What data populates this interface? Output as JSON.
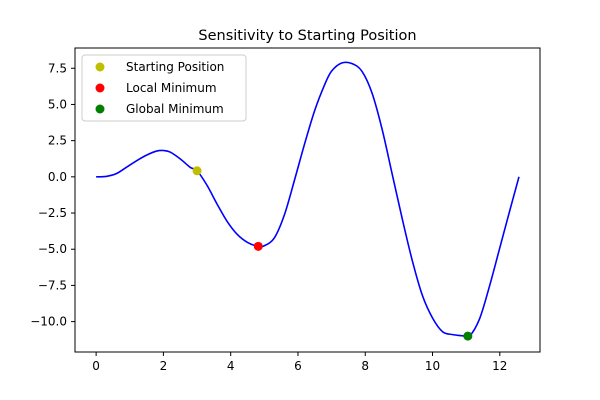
{
  "chart_data": {
    "type": "line",
    "title": "Sensitivity to Starting Position",
    "xlabel": "",
    "ylabel": "",
    "xlim": [
      -0.628,
      13.195
    ],
    "ylim": [
      -12.1,
      8.9
    ],
    "x_ticks": [
      0,
      2,
      4,
      6,
      8,
      10,
      12
    ],
    "y_ticks": [
      -10.0,
      -7.5,
      -5.0,
      -2.5,
      0.0,
      2.5,
      5.0,
      7.5
    ],
    "x_tick_labels": [
      "0",
      "2",
      "4",
      "6",
      "8",
      "10",
      "12"
    ],
    "y_tick_labels": [
      "−10.0",
      "−7.5",
      "−5.0",
      "−2.5",
      "0.0",
      "2.5",
      "5.0",
      "7.5"
    ],
    "grid": false,
    "legend_position": "top-left",
    "colors": {
      "curve": "#0000ff",
      "start": "#bfbf00",
      "local": "#ff0000",
      "global": "#008000"
    },
    "series": [
      {
        "kind": "line",
        "x": [
          0,
          0.3,
          0.6,
          0.9,
          1.2,
          1.5,
          1.8,
          2.0,
          2.2,
          2.5,
          2.8,
          3.0,
          3.3,
          3.6,
          3.9,
          4.2,
          4.5,
          4.8,
          5.0,
          5.3,
          5.6,
          5.9,
          6.2,
          6.5,
          6.8,
          7.0,
          7.3,
          7.6,
          7.9,
          8.2,
          8.5,
          8.8,
          9.1,
          9.4,
          9.7,
          10.0,
          10.3,
          10.6,
          10.9,
          11.1,
          11.4,
          11.7,
          12.0,
          12.3,
          12.57
        ],
        "y": [
          0,
          0.03,
          0.22,
          0.66,
          1.11,
          1.5,
          1.78,
          1.82,
          1.71,
          1.24,
          0.65,
          0.42,
          -0.6,
          -1.9,
          -3.1,
          -3.99,
          -4.53,
          -4.79,
          -4.76,
          -4.21,
          -2.6,
          -0.2,
          2.3,
          4.6,
          6.4,
          7.3,
          7.86,
          7.83,
          7.3,
          5.8,
          3.3,
          0.2,
          -2.9,
          -5.8,
          -8.2,
          -9.75,
          -10.7,
          -10.9,
          -10.98,
          -11.0,
          -9.8,
          -7.5,
          -4.9,
          -2.3,
          0.0
        ]
      },
      {
        "kind": "point",
        "name": "Starting Position",
        "x": 3.0,
        "y": 0.42
      },
      {
        "kind": "point",
        "name": "Local Minimum",
        "x": 4.82,
        "y": -4.8
      },
      {
        "kind": "point",
        "name": "Global Minimum",
        "x": 11.05,
        "y": -11.0
      }
    ]
  }
}
